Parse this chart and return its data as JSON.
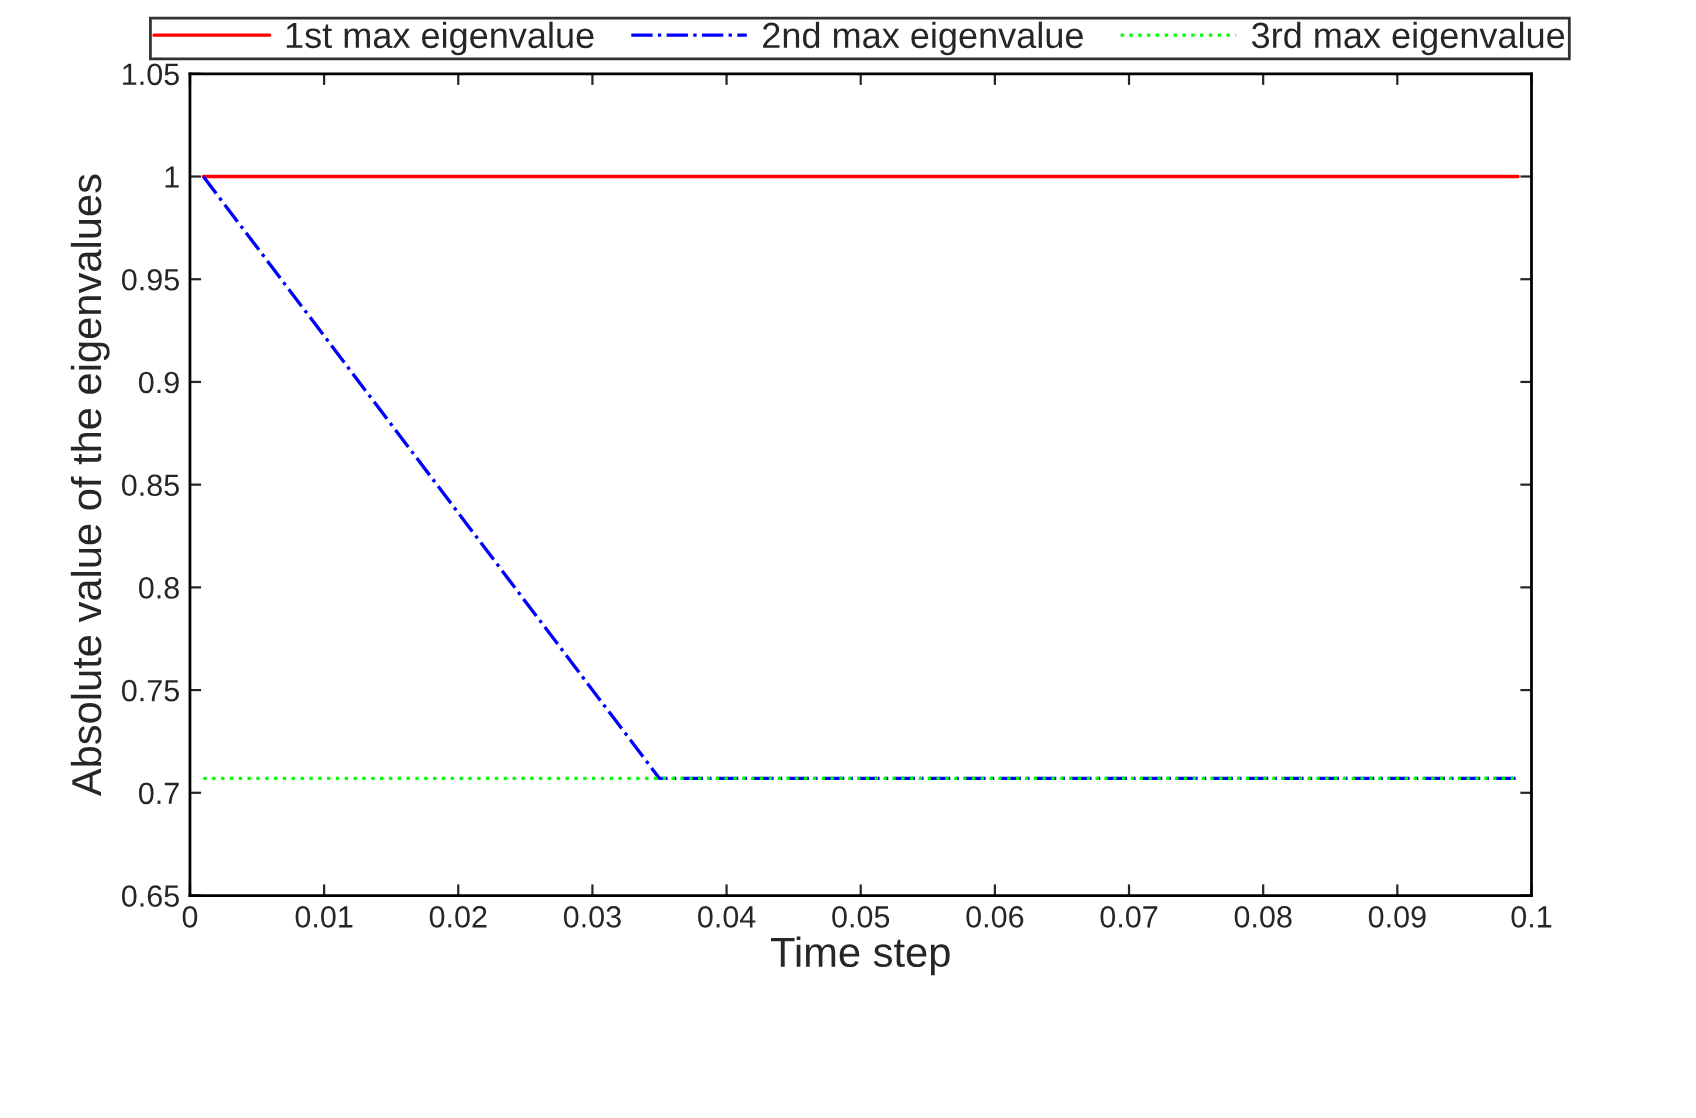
{
  "chart_data": {
    "type": "line",
    "xlabel": "Time step",
    "ylabel": "Absolute value of the eigenvalues",
    "xlim": [
      0,
      0.1
    ],
    "xticks": [
      0,
      0.01,
      0.02,
      0.03,
      0.04,
      0.05,
      0.06,
      0.07,
      0.08,
      0.09,
      0.1
    ],
    "ylim": [
      0.65,
      1.05
    ],
    "yticks": [
      0.65,
      0.7,
      0.75,
      0.8,
      0.85,
      0.9,
      0.95,
      1,
      1.05
    ],
    "x": [
      0.001,
      0.035,
      0.099
    ],
    "series": [
      {
        "name": "1st max eigenvalue",
        "color": "#ff0000",
        "line_style": "solid",
        "values": [
          1,
          1,
          1
        ]
      },
      {
        "name": "2nd max eigenvalue",
        "color": "#0000ff",
        "line_style": "dashdot",
        "values": [
          1,
          0.707,
          0.707
        ]
      },
      {
        "name": "3rd max eigenvalue",
        "color": "#00ff00",
        "line_style": "dotted",
        "values": [
          0.707,
          0.707,
          0.707
        ]
      }
    ],
    "grid": false,
    "legend": "top",
    "marker": "none"
  }
}
